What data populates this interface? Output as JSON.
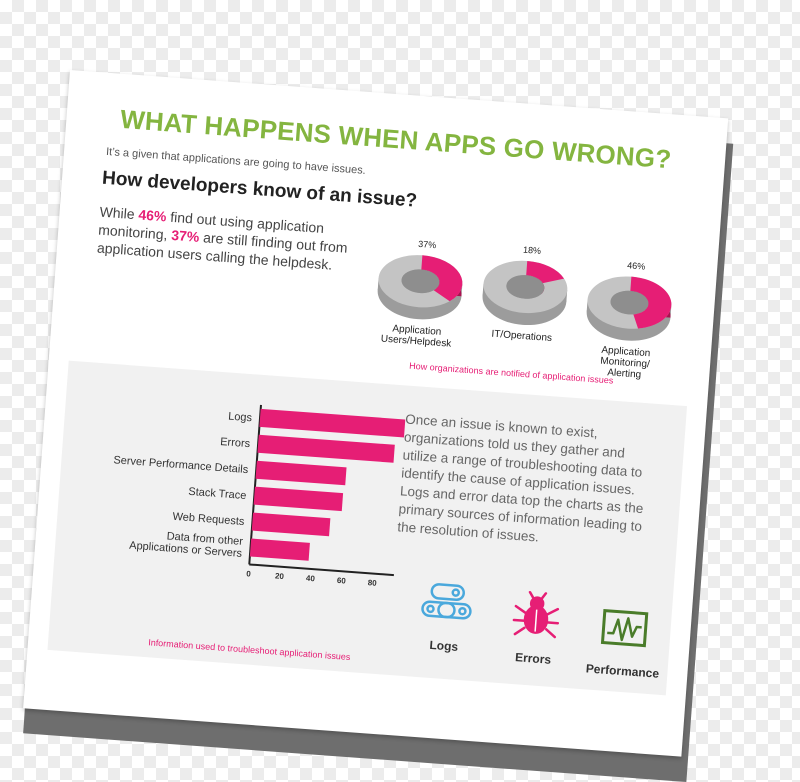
{
  "title": "WHAT HAPPENS WHEN APPS GO WRONG?",
  "intro": "It’s a given that applications are going to have issues.",
  "subhead": "How developers know of an issue?",
  "lead": {
    "p1": "While ",
    "v1": "46%",
    "p2": " find out using application monitoring, ",
    "v2": "37%",
    "p3": " are still finding out from application users calling the helpdesk."
  },
  "donut_caption": "How organizations are notified of application issues",
  "bar_caption": "Information used to troubleshoot application issues",
  "paragraph": "Once an issue is known to exist, organizations told us they gather and utilize a range of troubleshooting data to identify the cause of application issues. Logs and error data top the charts as the primary sources of information leading to the resolution of issues.",
  "icons": [
    {
      "label": "Logs",
      "icon": "logs-icon"
    },
    {
      "label": "Errors",
      "icon": "bug-icon"
    },
    {
      "label": "Performance",
      "icon": "performance-icon"
    }
  ],
  "colors": {
    "accent": "#e61e75",
    "title": "#84b540",
    "ring": "#c4c4c4",
    "monitor": "#4a7c2a",
    "logs": "#4aa8dc"
  },
  "chart_data": [
    {
      "type": "pie",
      "title": "How organizations are notified of application issues",
      "slices": [
        {
          "label": "Application Users/Helpdesk",
          "label_lines": [
            "Application",
            "Users/Helpdesk"
          ],
          "value": 37,
          "value_label": "37%"
        },
        {
          "label": "IT/Operations",
          "label_lines": [
            "IT/Operations"
          ],
          "value": 18,
          "value_label": "18%"
        },
        {
          "label": "Application Monitoring/ Alerting",
          "label_lines": [
            "Application",
            "Monitoring/",
            "Alerting"
          ],
          "value": 46,
          "value_label": "46%"
        }
      ]
    },
    {
      "type": "bar",
      "orientation": "horizontal",
      "title": "Information used to troubleshoot application issues",
      "categories": [
        "Logs",
        "Errors",
        "Server Performance Details",
        "Stack Trace",
        "Web Requests",
        "Data from other Applications or Servers"
      ],
      "category_lines": [
        [
          "Logs"
        ],
        [
          "Errors"
        ],
        [
          "Server Performance Details"
        ],
        [
          "Stack Trace"
        ],
        [
          "Web Requests"
        ],
        [
          "Data from other",
          "Applications or Servers"
        ]
      ],
      "values": [
        95,
        88,
        58,
        57,
        50,
        38
      ],
      "xlim": [
        0,
        100
      ],
      "xticks": [
        "0",
        "20",
        "40",
        "60",
        "80",
        "100"
      ],
      "grid": false
    }
  ]
}
